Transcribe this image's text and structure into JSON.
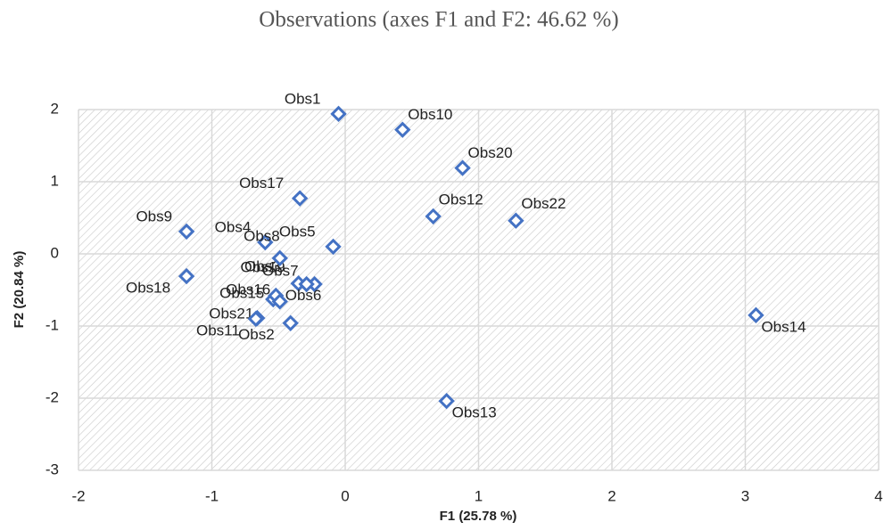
{
  "chart_data": {
    "type": "scatter",
    "title": "Observations (axes F1 and F2: 46.62 %)",
    "x_label": "F1 (25.78 %)",
    "y_label": "F2 (20.84 %)",
    "labels": [
      "Obs1",
      "Obs10",
      "Obs20",
      "Obs17",
      "Obs12",
      "Obs22",
      "Obs9",
      "Obs4",
      "Obs18",
      "Obs14",
      "Obs13",
      "Obs3",
      "Obs7",
      "Obs19",
      "Obs15",
      "Obs16",
      "Obs6",
      "Obs5",
      "Obs8",
      "Obs21",
      "Obs2",
      "Obs11"
    ],
    "x": [
      -0.05,
      0.43,
      0.88,
      -0.34,
      0.66,
      1.28,
      -1.19,
      -0.6,
      -1.19,
      3.08,
      0.76,
      -0.35,
      -0.23,
      -0.29,
      -0.54,
      -0.52,
      -0.49,
      -0.09,
      -0.49,
      -0.66,
      -0.41,
      -0.67
    ],
    "values": [
      1.94,
      1.72,
      1.19,
      0.77,
      0.52,
      0.46,
      0.31,
      0.16,
      -0.31,
      -0.85,
      -2.04,
      -0.41,
      -0.42,
      -0.42,
      -0.63,
      -0.58,
      -0.66,
      0.1,
      -0.06,
      -0.89,
      -0.96,
      -0.9
    ],
    "color": "#4472c4",
    "xlim": [
      -2,
      4
    ],
    "xticks": [
      -2,
      -1,
      0,
      1,
      2,
      3,
      4
    ],
    "ylim": [
      -3,
      2
    ],
    "yticks": [
      -3,
      -2,
      -1,
      0,
      1,
      2
    ],
    "grid": true
  }
}
